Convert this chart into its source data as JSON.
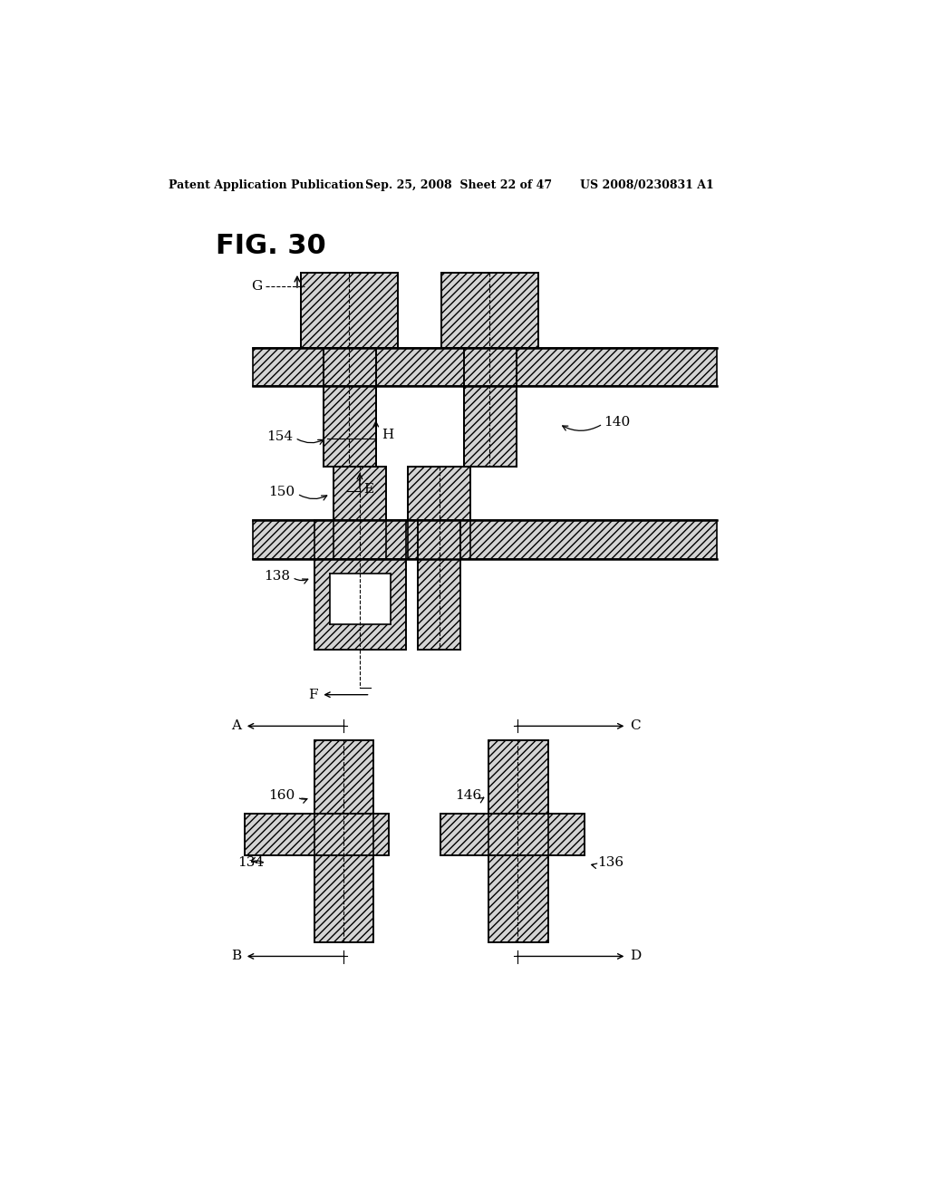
{
  "title": "FIG. 30",
  "header_left": "Patent Application Publication",
  "header_mid": "Sep. 25, 2008  Sheet 22 of 47",
  "header_right": "US 2008/0230831 A1",
  "bg_color": "#ffffff"
}
